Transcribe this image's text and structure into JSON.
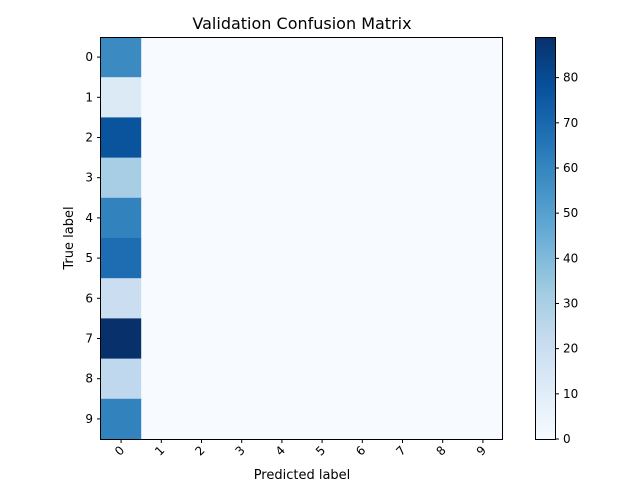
{
  "chart_data": {
    "type": "heatmap",
    "title": "Validation Confusion Matrix",
    "xlabel": "Predicted label",
    "ylabel": "True label",
    "x_categories": [
      "0",
      "1",
      "2",
      "3",
      "4",
      "5",
      "6",
      "7",
      "8",
      "9"
    ],
    "y_categories": [
      "0",
      "1",
      "2",
      "3",
      "4",
      "5",
      "6",
      "7",
      "8",
      "9"
    ],
    "values": [
      [
        58,
        0,
        0,
        0,
        0,
        0,
        0,
        0,
        0,
        0
      ],
      [
        12,
        0,
        0,
        0,
        0,
        0,
        0,
        0,
        0,
        0
      ],
      [
        77,
        0,
        0,
        0,
        0,
        0,
        0,
        0,
        0,
        0
      ],
      [
        31,
        0,
        0,
        0,
        0,
        0,
        0,
        0,
        0,
        0
      ],
      [
        61,
        0,
        0,
        0,
        0,
        0,
        0,
        0,
        0,
        0
      ],
      [
        68,
        0,
        0,
        0,
        0,
        0,
        0,
        0,
        0,
        0
      ],
      [
        20,
        0,
        0,
        0,
        0,
        0,
        0,
        0,
        0,
        0
      ],
      [
        89,
        0,
        0,
        0,
        0,
        0,
        0,
        0,
        0,
        0
      ],
      [
        24,
        0,
        0,
        0,
        0,
        0,
        0,
        0,
        0,
        0
      ],
      [
        61,
        0,
        0,
        0,
        0,
        0,
        0,
        0,
        0,
        0
      ]
    ],
    "colormap": "Blues",
    "vmin": 0,
    "vmax": 89,
    "colorbar_ticks": [
      0,
      10,
      20,
      30,
      40,
      50,
      60,
      70,
      80
    ],
    "x_tick_rotation": 45,
    "grid": false
  }
}
